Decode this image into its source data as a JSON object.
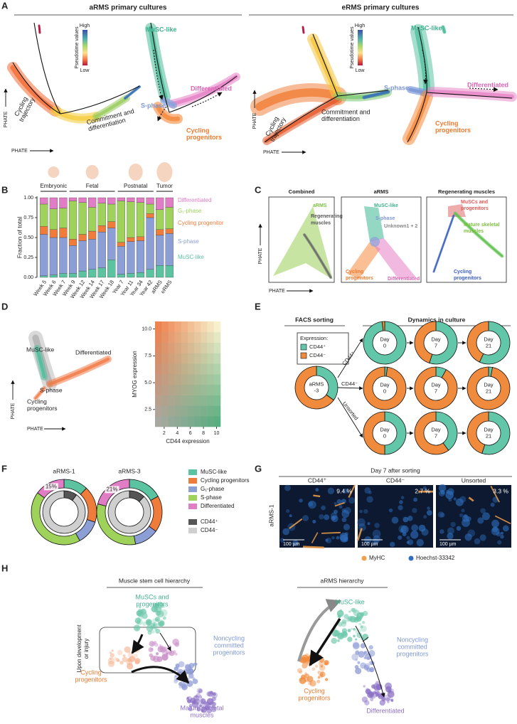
{
  "figure": {
    "A": {
      "label": "A",
      "left_title": "aRMS primary cultures",
      "right_title": "eRMS primary cultures",
      "arms_pseudotime": {
        "legend_title": "Pseudotime values",
        "high": "High",
        "low": "Low",
        "trajectory": [
          "Cycling",
          "trajectory"
        ],
        "branch": [
          "Commitment and",
          "differentiation"
        ],
        "y_axis": "PHATE",
        "x_axis": "PHATE"
      },
      "arms_states": {
        "musc": "MuSC-like",
        "differentiated": "Differentiated",
        "s_phase": "S-phase",
        "cycling": [
          "Cycling",
          "progenitors"
        ]
      },
      "erms_pseudotime": {
        "legend_title": "Pseudotime values",
        "high": "High",
        "low": "Low",
        "trajectory": [
          "Cycling",
          "trajectory"
        ],
        "branch": [
          "Commitment and",
          "differentiation"
        ],
        "y_axis": "PHATE",
        "x_axis": "PHATE"
      },
      "erms_states": {
        "musc": "MuSC-like",
        "differentiated": "Differentiated",
        "s_phase": "S-phase",
        "cycling": [
          "Cycling",
          "progenitors"
        ]
      }
    },
    "B": {
      "label": "B",
      "groups": [
        "Embryonic",
        "Fetal",
        "Postnatal",
        "Tumor"
      ]
    },
    "C": {
      "label": "C",
      "combined": {
        "title": "Combined",
        "arms": "aRMS",
        "regenerating": [
          "Regenerating",
          "muscles"
        ]
      },
      "arms": {
        "title": "aRMS",
        "musc": "MuSC-like",
        "s_phase": "S-phase",
        "unknown": "Unknown1 + 2",
        "cycling": [
          "Cycling",
          "progenitors"
        ],
        "differentiated": "Differentiated"
      },
      "regenerating": {
        "title": "Regenerating muscles",
        "muscs": [
          "MuSCs and",
          "progenitors"
        ],
        "mature": [
          "Mature skeletal",
          "muscles"
        ],
        "cycling": [
          "Cycling",
          "progenitors"
        ]
      },
      "y_axis": "PHATE",
      "x_axis": "PHATE"
    },
    "D": {
      "label": "D",
      "musc": "MuSC-like",
      "differentiated": "Differentiated",
      "s_phase": "S-phase",
      "cycling": [
        "Cycling",
        "progenitors"
      ],
      "y_axis": "PHATE",
      "x_axis": "PHATE"
    },
    "E": {
      "label": "E",
      "sorting": "FACS sorting",
      "dynamics": "Dynamics in culture",
      "legend_title": "Expression:",
      "arrows": [
        "CD44⁺",
        "CD44⁻",
        "Unsorted"
      ]
    },
    "F": {
      "label": "F"
    },
    "G": {
      "label": "G",
      "title": "Day 7 after sorting",
      "row_label": "aRMS-1",
      "panels": [
        {
          "title": "CD44⁺",
          "percent": "9.4 %",
          "scale_bar": "100 µm"
        },
        {
          "title": "CD44⁻",
          "percent": "2.7 %",
          "scale_bar": "100 µm"
        },
        {
          "title": "Unsorted",
          "percent": "3.3 %",
          "scale_bar": "100 µm"
        }
      ],
      "legend": [
        {
          "name": "MyHC",
          "color": "#f0a04b"
        },
        {
          "name": "Hoechst-33342",
          "color": "#2f6fc0"
        }
      ]
    },
    "H": {
      "label": "H",
      "left_title": "Muscle stem cell hierarchy",
      "right_title": "aRMS hierarchy",
      "left": {
        "muscs": [
          "MuSCs and",
          "progenitors"
        ],
        "noncycling": [
          "Noncycling",
          "committed",
          "progenitors"
        ],
        "cycling": [
          "Cycling",
          "progenitors"
        ],
        "mature": [
          "Mature skeletal",
          "muscles"
        ],
        "trigger": [
          "Upon development",
          "or injury"
        ]
      },
      "right": {
        "musc": "MuSC-like",
        "noncycling": [
          "Noncycling",
          "committed",
          "progenitors"
        ],
        "cycling": [
          "Cycling",
          "progenitors"
        ],
        "differentiated": "Differentiated"
      }
    }
  },
  "chart_data": [
    {
      "type": "bar",
      "stacked": true,
      "ylabel": "Fraction of total",
      "categories": [
        "Week 5",
        "Week 6",
        "Week 7",
        "Week 9",
        "Week 12",
        "Week 14",
        "Week 17",
        "Week 18",
        "Year 7",
        "Year 11",
        "Year 34",
        "Year 42",
        "aRMS",
        "eRMS"
      ],
      "ylim": [
        0,
        1
      ],
      "yticks": [
        {
          "value": 0,
          "label": "0.00"
        },
        {
          "value": 0.25,
          "label": "0.25"
        },
        {
          "value": 0.5,
          "label": "0.50"
        },
        {
          "value": 0.75,
          "label": "0.75"
        },
        {
          "value": 1,
          "label": "1.00"
        }
      ],
      "series": [
        {
          "name": "MuSC-like",
          "color": "#5cc3a0",
          "values": [
            0.02,
            0.03,
            0.05,
            0.05,
            0.08,
            0.1,
            0.12,
            0.22,
            0.04,
            0.05,
            0.06,
            0.1,
            0.15,
            0.15
          ]
        },
        {
          "name": "S-phase",
          "color": "#8c9ed6",
          "values": [
            0.52,
            0.47,
            0.45,
            0.35,
            0.38,
            0.38,
            0.45,
            0.4,
            0.35,
            0.4,
            0.4,
            0.65,
            0.38,
            0.4
          ]
        },
        {
          "name": "Cycling progenitor",
          "color": "#f07c3c",
          "values": [
            0.1,
            0.1,
            0.12,
            0.08,
            0.08,
            0.1,
            0.08,
            0.08,
            0.05,
            0.05,
            0.05,
            0.05,
            0.07,
            0.06
          ]
        },
        {
          "name": "G₁-phase",
          "color": "#9fd25b",
          "values": [
            0.28,
            0.26,
            0.25,
            0.48,
            0.4,
            0.3,
            0.28,
            0.22,
            0.52,
            0.45,
            0.43,
            0.12,
            0.25,
            0.27
          ]
        },
        {
          "name": "Differentiated",
          "color": "#e07dc4",
          "values": [
            0.08,
            0.14,
            0.13,
            0.04,
            0.06,
            0.12,
            0.07,
            0.08,
            0.04,
            0.05,
            0.06,
            0.08,
            0.15,
            0.12
          ]
        }
      ]
    },
    {
      "type": "heatmap",
      "xlabel": "CD44 expression",
      "ylabel": "MYOG expression",
      "xlim": [
        0.6,
        10.6
      ],
      "ylim": [
        0.9,
        10.7
      ],
      "xticks": [
        2,
        4,
        6,
        8,
        10
      ],
      "yticks": [
        2.5,
        {
          "value": 5,
          "label": "5.0"
        },
        7.5,
        {
          "value": 10,
          "label": "10.0"
        }
      ]
    },
    {
      "type": "pie",
      "series": [
        {
          "name": "CD44⁺",
          "color": "#62c6a8"
        },
        {
          "name": "CD44⁻",
          "color": "#f08a3c"
        }
      ],
      "pies": [
        {
          "label": [
            "aRMS",
            "-3"
          ],
          "values": [
            35,
            65
          ]
        },
        {
          "label": [
            "Day",
            "0"
          ],
          "values": [
            98,
            2
          ]
        },
        {
          "label": [
            "Day",
            "7"
          ],
          "values": [
            55,
            45
          ]
        },
        {
          "label": [
            "Day",
            "21"
          ],
          "values": [
            57,
            43
          ]
        },
        {
          "label": [
            "Day",
            "0"
          ],
          "values": [
            2,
            98
          ]
        },
        {
          "label": [
            "Day",
            "7"
          ],
          "values": [
            8,
            92
          ]
        },
        {
          "label": [
            "Day",
            "21"
          ],
          "values": [
            3,
            97
          ]
        },
        {
          "label": [
            "Day",
            "0"
          ],
          "values": [
            50,
            50
          ]
        },
        {
          "label": [
            "Day",
            "7"
          ],
          "values": [
            40,
            60
          ]
        },
        {
          "label": [
            "Day",
            "21"
          ],
          "values": [
            55,
            45
          ]
        }
      ]
    },
    {
      "type": "nested-pie",
      "outer_series": [
        {
          "name": "MuSC-like",
          "color": "#5cc3a0"
        },
        {
          "name": "Cycling progenitors",
          "color": "#f07c3c"
        },
        {
          "name": "G₁-phase",
          "color": "#8c9ed6"
        },
        {
          "name": "S-phase",
          "color": "#9fd25b"
        },
        {
          "name": "Differentiated",
          "color": "#e07dc4"
        }
      ],
      "inner_series": [
        {
          "name": "CD44⁺",
          "color": "#555555"
        },
        {
          "name": "CD44⁻",
          "color": "#cfcfcf"
        }
      ],
      "pies": [
        {
          "title": "aRMS-1",
          "outer": [
            12,
            18,
            12,
            43,
            15
          ],
          "value_labels": [
            null,
            null,
            null,
            null,
            "15%"
          ],
          "inner": [
            10,
            90
          ]
        },
        {
          "title": "aRMS-3",
          "outer": [
            17,
            18,
            12,
            32,
            21
          ],
          "value_labels": [
            null,
            null,
            null,
            null,
            "21%"
          ],
          "inner": [
            12,
            88
          ]
        }
      ]
    }
  ]
}
